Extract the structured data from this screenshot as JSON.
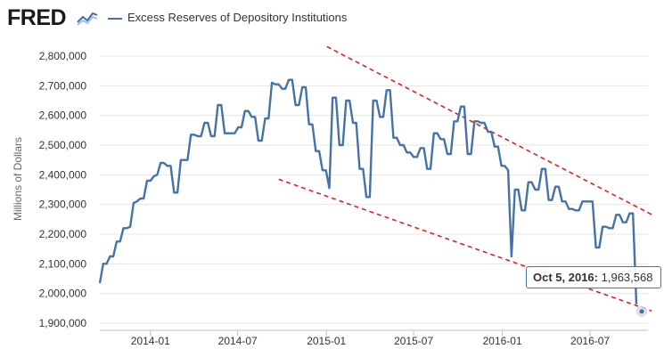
{
  "header": {
    "logo_text": "FRED",
    "series_title": "Excess Reserves of Depository Institutions"
  },
  "tooltip": {
    "date": "Oct 5, 2016",
    "separator": ":",
    "value": "1,963,568"
  },
  "chart_data": {
    "type": "line",
    "ylabel": "Millions of Dollars",
    "ylim": [
      1900000,
      2800000
    ],
    "y_ticks": [
      "1,900,000",
      "2,000,000",
      "2,100,000",
      "2,200,000",
      "2,300,000",
      "2,400,000",
      "2,500,000",
      "2,600,000",
      "2,700,000",
      "2,800,000"
    ],
    "x_ticks": [
      "2014-01",
      "2014-07",
      "2015-01",
      "2015-07",
      "2016-01",
      "2016-07"
    ],
    "x_range": [
      "2013-09-18",
      "2016-10-05"
    ],
    "grid": "horizontal",
    "line_color": "#4572a7",
    "trend_line_color": "#e02020",
    "series": [
      {
        "x": [
          "2013-09-18",
          "2013-09-25",
          "2013-10-02",
          "2013-10-09",
          "2013-10-16",
          "2013-10-23",
          "2013-10-30",
          "2013-11-06",
          "2013-11-13",
          "2013-11-20",
          "2013-11-27",
          "2013-12-04",
          "2013-12-11",
          "2013-12-18",
          "2013-12-25",
          "2014-01-01",
          "2014-01-08",
          "2014-01-15",
          "2014-01-22",
          "2014-01-29",
          "2014-02-05",
          "2014-02-12",
          "2014-02-19",
          "2014-02-26",
          "2014-03-05",
          "2014-03-12",
          "2014-03-19",
          "2014-03-26",
          "2014-04-02",
          "2014-04-09",
          "2014-04-16",
          "2014-04-23",
          "2014-04-30",
          "2014-05-07",
          "2014-05-14",
          "2014-05-21",
          "2014-05-28",
          "2014-06-04",
          "2014-06-11",
          "2014-06-18",
          "2014-06-25",
          "2014-07-02",
          "2014-07-09",
          "2014-07-16",
          "2014-07-23",
          "2014-07-30",
          "2014-08-06",
          "2014-08-13",
          "2014-08-20",
          "2014-08-27",
          "2014-09-03",
          "2014-09-10",
          "2014-09-17",
          "2014-09-24",
          "2014-10-01",
          "2014-10-08",
          "2014-10-15",
          "2014-10-22",
          "2014-10-29",
          "2014-11-05",
          "2014-11-12",
          "2014-11-19",
          "2014-11-26",
          "2014-12-03",
          "2014-12-10",
          "2014-12-17",
          "2014-12-24",
          "2014-12-31",
          "2015-01-07",
          "2015-01-14",
          "2015-01-21",
          "2015-01-28",
          "2015-02-04",
          "2015-02-11",
          "2015-02-18",
          "2015-02-25",
          "2015-03-04",
          "2015-03-11",
          "2015-03-18",
          "2015-03-25",
          "2015-04-01",
          "2015-04-08",
          "2015-04-15",
          "2015-04-22",
          "2015-04-29",
          "2015-05-06",
          "2015-05-13",
          "2015-05-20",
          "2015-05-27",
          "2015-06-03",
          "2015-06-10",
          "2015-06-17",
          "2015-06-24",
          "2015-07-01",
          "2015-07-08",
          "2015-07-15",
          "2015-07-22",
          "2015-07-29",
          "2015-08-05",
          "2015-08-12",
          "2015-08-19",
          "2015-08-26",
          "2015-09-02",
          "2015-09-09",
          "2015-09-16",
          "2015-09-23",
          "2015-09-30",
          "2015-10-07",
          "2015-10-14",
          "2015-10-21",
          "2015-10-28",
          "2015-11-04",
          "2015-11-11",
          "2015-11-18",
          "2015-11-25",
          "2015-12-02",
          "2015-12-09",
          "2015-12-16",
          "2015-12-23",
          "2015-12-30",
          "2016-01-06",
          "2016-01-13",
          "2016-01-20",
          "2016-01-27",
          "2016-02-03",
          "2016-02-10",
          "2016-02-17",
          "2016-02-24",
          "2016-03-02",
          "2016-03-09",
          "2016-03-16",
          "2016-03-23",
          "2016-03-30",
          "2016-04-06",
          "2016-04-13",
          "2016-04-20",
          "2016-04-27",
          "2016-05-04",
          "2016-05-11",
          "2016-05-18",
          "2016-05-25",
          "2016-06-01",
          "2016-06-08",
          "2016-06-15",
          "2016-06-22",
          "2016-06-29",
          "2016-07-06",
          "2016-07-13",
          "2016-07-20",
          "2016-07-27",
          "2016-08-03",
          "2016-08-10",
          "2016-08-17",
          "2016-08-24",
          "2016-08-31",
          "2016-09-07",
          "2016-09-14",
          "2016-09-21",
          "2016-09-28",
          "2016-10-05"
        ],
        "y": [
          2035000,
          2100000,
          2100000,
          2125000,
          2125000,
          2175000,
          2175000,
          2220000,
          2220000,
          2225000,
          2305000,
          2310000,
          2320000,
          2320000,
          2380000,
          2380000,
          2395000,
          2400000,
          2440000,
          2440000,
          2430000,
          2430000,
          2340000,
          2340000,
          2450000,
          2450000,
          2450000,
          2535000,
          2535000,
          2530000,
          2530000,
          2575000,
          2575000,
          2530000,
          2530000,
          2635000,
          2635000,
          2540000,
          2540000,
          2540000,
          2540000,
          2560000,
          2560000,
          2615000,
          2615000,
          2595000,
          2595000,
          2515000,
          2515000,
          2590000,
          2590000,
          2710000,
          2705000,
          2705000,
          2690000,
          2690000,
          2720000,
          2720000,
          2635000,
          2635000,
          2695000,
          2695000,
          2570000,
          2570000,
          2480000,
          2480000,
          2415000,
          2415000,
          2355000,
          2660000,
          2660000,
          2500000,
          2500000,
          2650000,
          2650000,
          2575000,
          2575000,
          2420000,
          2420000,
          2325000,
          2325000,
          2650000,
          2650000,
          2595000,
          2595000,
          2685000,
          2685000,
          2525000,
          2525000,
          2500000,
          2500000,
          2475000,
          2475000,
          2460000,
          2460000,
          2490000,
          2490000,
          2420000,
          2420000,
          2540000,
          2540000,
          2520000,
          2520000,
          2470000,
          2470000,
          2580000,
          2580000,
          2630000,
          2630000,
          2470000,
          2470000,
          2580000,
          2580000,
          2575000,
          2575000,
          2545000,
          2545000,
          2495000,
          2495000,
          2430000,
          2430000,
          2415000,
          2125000,
          2350000,
          2350000,
          2280000,
          2280000,
          2375000,
          2375000,
          2350000,
          2350000,
          2420000,
          2420000,
          2315000,
          2315000,
          2360000,
          2360000,
          2310000,
          2310000,
          2285000,
          2285000,
          2280000,
          2280000,
          2310000,
          2310000,
          2310000,
          2310000,
          2155000,
          2155000,
          2225000,
          2225000,
          2220000,
          2220000,
          2265000,
          2265000,
          2240000,
          2240000,
          2270000,
          2270000,
          1963568
        ]
      }
    ],
    "trend_lines": [
      {
        "x": [
          "2015-01-02",
          "2016-09-30"
        ],
        "y": [
          2832000,
          2290000
        ]
      },
      {
        "x": [
          "2014-09-24",
          "2016-09-30"
        ],
        "y": [
          2385000,
          1965000
        ]
      }
    ]
  }
}
